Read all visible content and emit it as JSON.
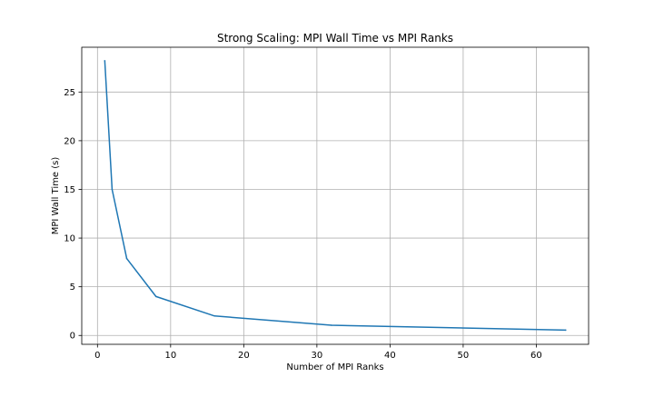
{
  "chart_data": {
    "type": "line",
    "title": "Strong Scaling: MPI Wall Time vs MPI Ranks",
    "xlabel": "Number of MPI Ranks",
    "ylabel": "MPI Wall Time (s)",
    "xlim": [
      -2.15,
      67.15
    ],
    "ylim": [
      -0.91,
      29.6
    ],
    "xticks": [
      0,
      10,
      20,
      30,
      40,
      50,
      60
    ],
    "yticks": [
      0,
      5,
      10,
      15,
      20,
      25
    ],
    "grid": true,
    "series": [
      {
        "color": "#1f77b4",
        "x": [
          1,
          2,
          4,
          8,
          16,
          32,
          64
        ],
        "y": [
          28.2,
          15.0,
          7.9,
          4.0,
          2.0,
          1.05,
          0.55
        ]
      }
    ]
  }
}
